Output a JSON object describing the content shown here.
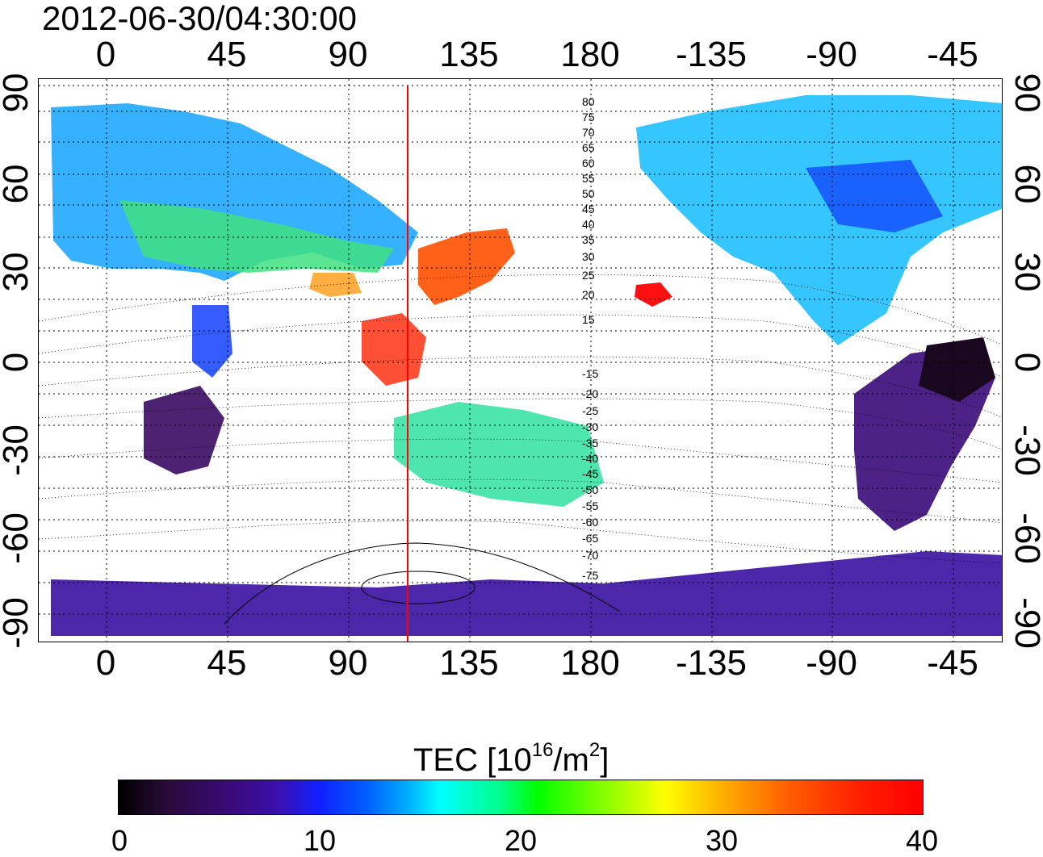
{
  "timestamp": "2012-06-30/04:30:00",
  "axis": {
    "lon_ticks": [
      "0",
      "45",
      "90",
      "135",
      "180",
      "-135",
      "-90",
      "-45"
    ],
    "lat_ticks": [
      "90",
      "60",
      "30",
      "0",
      "-30",
      "-60",
      "-90"
    ]
  },
  "contour_labels": [
    "80",
    "75",
    "70",
    "65",
    "60",
    "55",
    "50",
    "45",
    "40",
    "35",
    "30",
    "25",
    "20",
    "15",
    "-15",
    "-20",
    "-25",
    "-30",
    "-35",
    "-40",
    "-45",
    "-50",
    "-55",
    "-60",
    "-65",
    "-70",
    "-75"
  ],
  "marker_longitude": 113,
  "colorbar": {
    "title_prefix": "TEC  [10",
    "title_exp1": "16",
    "title_mid": "/m",
    "title_exp2": "2",
    "title_suffix": "]",
    "ticks": [
      "0",
      "10",
      "20",
      "30",
      "40"
    ],
    "min": 0,
    "max": 40
  },
  "colors": {
    "marker_line": "#ff0000",
    "grid": "#000000"
  }
}
